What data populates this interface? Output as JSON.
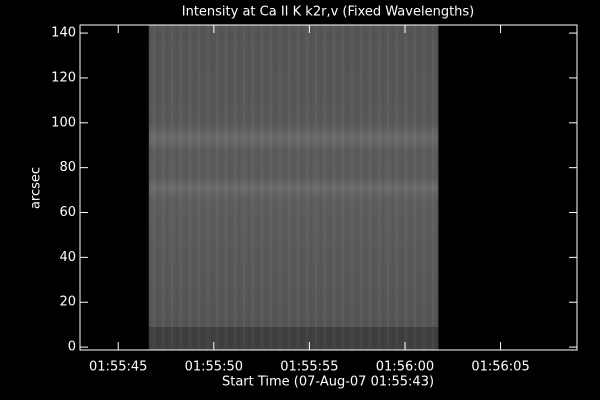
{
  "chart_data": {
    "type": "image",
    "title": "Intensity at Ca II K k2r,v (Fixed Wavelengths)",
    "x_label": "Start Time (07-Aug-07 01:55:43)",
    "y_label": "arcsec",
    "xlim": [
      0,
      26
    ],
    "xticks": [
      {
        "value": 2,
        "label": "01:55:45"
      },
      {
        "value": 7,
        "label": "01:55:50"
      },
      {
        "value": 12,
        "label": "01:55:55"
      },
      {
        "value": 17,
        "label": "01:56:00"
      },
      {
        "value": 22,
        "label": "01:56:05"
      }
    ],
    "ylim": [
      -1.3,
      143.6
    ],
    "yticks": [
      0,
      20,
      40,
      60,
      80,
      100,
      120,
      140
    ],
    "image_xlim": [
      3.6,
      18.75
    ],
    "image_ylim": [
      -1.3,
      143.6
    ]
  }
}
